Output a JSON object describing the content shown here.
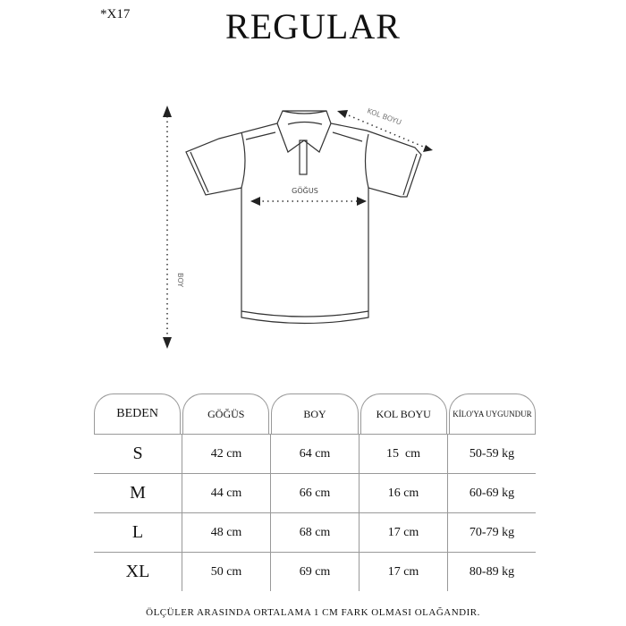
{
  "code": "*X17",
  "title": "REGULAR",
  "diagram": {
    "chest_label": "GÖĞUS",
    "length_label": "BOY",
    "sleeve_label": "KOL BOYU"
  },
  "table": {
    "headers": [
      "BEDEN",
      "GÖĞÜS",
      "BOY",
      "KOL BOYU",
      "KİLO'YA UYGUNDUR"
    ],
    "rows": [
      [
        "S",
        "42 cm",
        "64 cm",
        "15  cm",
        "50-59 kg"
      ],
      [
        "M",
        "44 cm",
        "66 cm",
        "16 cm",
        "60-69 kg"
      ],
      [
        "L",
        "48 cm",
        "68 cm",
        "17 cm",
        "70-79 kg"
      ],
      [
        "XL",
        "50 cm",
        "69 cm",
        "17 cm",
        "80-89 kg"
      ]
    ]
  },
  "footer": "ÖLÇÜLER ARASINDA ORTALAMA 1 CM FARK OLMASI OLAĞANDIR."
}
